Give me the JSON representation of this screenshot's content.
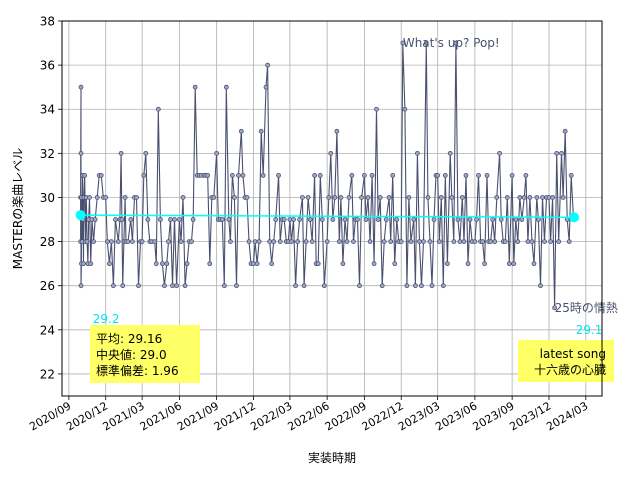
{
  "chart_data": {
    "type": "line",
    "xlabel": "実装時期",
    "ylabel": "MASTERの楽曲レベル",
    "ylim": [
      21,
      38
    ],
    "xlim": [
      "2020-08-15",
      "2024-04-10"
    ],
    "grid": true,
    "yticks": [
      22,
      24,
      26,
      28,
      30,
      32,
      34,
      36,
      38
    ],
    "xticks": [
      {
        "date": "2020-09-01",
        "label": "2020/09"
      },
      {
        "date": "2020-12-01",
        "label": "2020/12"
      },
      {
        "date": "2021-03-01",
        "label": "2021/03"
      },
      {
        "date": "2021-06-01",
        "label": "2021/06"
      },
      {
        "date": "2021-09-01",
        "label": "2021/09"
      },
      {
        "date": "2021-12-01",
        "label": "2021/12"
      },
      {
        "date": "2022-03-01",
        "label": "2022/03"
      },
      {
        "date": "2022-06-01",
        "label": "2022/06"
      },
      {
        "date": "2022-09-01",
        "label": "2022/09"
      },
      {
        "date": "2022-12-01",
        "label": "2022/12"
      },
      {
        "date": "2023-03-01",
        "label": "2023/03"
      },
      {
        "date": "2023-06-01",
        "label": "2023/06"
      },
      {
        "date": "2023-09-01",
        "label": "2023/09"
      },
      {
        "date": "2023-12-01",
        "label": "2023/12"
      },
      {
        "date": "2024-03-01",
        "label": "2024/03"
      }
    ],
    "series": [
      {
        "color": "#4a5170",
        "points": [
          [
            "2020-09-30",
            28
          ],
          [
            "2020-09-30",
            30
          ],
          [
            "2020-10-01",
            35
          ],
          [
            "2020-10-01",
            32
          ],
          [
            "2020-10-01",
            26
          ],
          [
            "2020-10-02",
            27
          ],
          [
            "2020-10-02",
            30
          ],
          [
            "2020-10-03",
            29
          ],
          [
            "2020-10-04",
            28
          ],
          [
            "2020-10-05",
            31
          ],
          [
            "2020-10-06",
            29
          ],
          [
            "2020-10-07",
            27
          ],
          [
            "2020-10-08",
            30
          ],
          [
            "2020-10-10",
            31
          ],
          [
            "2020-10-12",
            28
          ],
          [
            "2020-10-14",
            30
          ],
          [
            "2020-10-16",
            28
          ],
          [
            "2020-10-18",
            27
          ],
          [
            "2020-10-20",
            29
          ],
          [
            "2020-10-22",
            30
          ],
          [
            "2020-10-25",
            27
          ],
          [
            "2020-10-28",
            29
          ],
          [
            "2020-11-01",
            28
          ],
          [
            "2020-11-05",
            29
          ],
          [
            "2020-11-10",
            30
          ],
          [
            "2020-11-15",
            31
          ],
          [
            "2020-11-20",
            31
          ],
          [
            "2020-11-25",
            30
          ],
          [
            "2020-12-01",
            30
          ],
          [
            "2020-12-05",
            28
          ],
          [
            "2020-12-10",
            27
          ],
          [
            "2020-12-15",
            28
          ],
          [
            "2020-12-20",
            26
          ],
          [
            "2020-12-25",
            29
          ],
          [
            "2021-01-01",
            28
          ],
          [
            "2021-01-05",
            29
          ],
          [
            "2021-01-08",
            32
          ],
          [
            "2021-01-10",
            29
          ],
          [
            "2021-01-12",
            26
          ],
          [
            "2021-01-15",
            28
          ],
          [
            "2021-01-18",
            30
          ],
          [
            "2021-01-20",
            28
          ],
          [
            "2021-01-25",
            28
          ],
          [
            "2021-02-01",
            29
          ],
          [
            "2021-02-05",
            28
          ],
          [
            "2021-02-10",
            30
          ],
          [
            "2021-02-15",
            30
          ],
          [
            "2021-02-20",
            26
          ],
          [
            "2021-02-25",
            28
          ],
          [
            "2021-03-01",
            28
          ],
          [
            "2021-03-05",
            31
          ],
          [
            "2021-03-10",
            32
          ],
          [
            "2021-03-15",
            29
          ],
          [
            "2021-03-20",
            28
          ],
          [
            "2021-03-25",
            28
          ],
          [
            "2021-04-01",
            28
          ],
          [
            "2021-04-05",
            27
          ],
          [
            "2021-04-10",
            34
          ],
          [
            "2021-04-15",
            29
          ],
          [
            "2021-04-20",
            27
          ],
          [
            "2021-04-25",
            26
          ],
          [
            "2021-05-01",
            27
          ],
          [
            "2021-05-05",
            28
          ],
          [
            "2021-05-10",
            29
          ],
          [
            "2021-05-15",
            26
          ],
          [
            "2021-05-20",
            29
          ],
          [
            "2021-05-25",
            26
          ],
          [
            "2021-06-01",
            29
          ],
          [
            "2021-06-05",
            28
          ],
          [
            "2021-06-10",
            30
          ],
          [
            "2021-06-15",
            26
          ],
          [
            "2021-06-20",
            27
          ],
          [
            "2021-06-25",
            28
          ],
          [
            "2021-07-01",
            28
          ],
          [
            "2021-07-05",
            29
          ],
          [
            "2021-07-10",
            35
          ],
          [
            "2021-07-15",
            31
          ],
          [
            "2021-07-20",
            31
          ],
          [
            "2021-07-25",
            31
          ],
          [
            "2021-08-01",
            31
          ],
          [
            "2021-08-05",
            31
          ],
          [
            "2021-08-10",
            31
          ],
          [
            "2021-08-15",
            27
          ],
          [
            "2021-08-20",
            30
          ],
          [
            "2021-08-25",
            30
          ],
          [
            "2021-09-01",
            32
          ],
          [
            "2021-09-05",
            29
          ],
          [
            "2021-09-10",
            29
          ],
          [
            "2021-09-15",
            29
          ],
          [
            "2021-09-20",
            26
          ],
          [
            "2021-09-25",
            35
          ],
          [
            "2021-10-01",
            29
          ],
          [
            "2021-10-05",
            28
          ],
          [
            "2021-10-10",
            31
          ],
          [
            "2021-10-15",
            30
          ],
          [
            "2021-10-20",
            26
          ],
          [
            "2021-10-25",
            31
          ],
          [
            "2021-11-01",
            33
          ],
          [
            "2021-11-05",
            31
          ],
          [
            "2021-11-10",
            30
          ],
          [
            "2021-11-15",
            30
          ],
          [
            "2021-11-20",
            28
          ],
          [
            "2021-11-25",
            27
          ],
          [
            "2021-12-01",
            27
          ],
          [
            "2021-12-05",
            28
          ],
          [
            "2021-12-10",
            27
          ],
          [
            "2021-12-15",
            28
          ],
          [
            "2021-12-20",
            33
          ],
          [
            "2021-12-25",
            31
          ],
          [
            "2022-01-01",
            35
          ],
          [
            "2022-01-05",
            36
          ],
          [
            "2022-01-10",
            28
          ],
          [
            "2022-01-15",
            27
          ],
          [
            "2022-01-20",
            28
          ],
          [
            "2022-01-25",
            29
          ],
          [
            "2022-02-01",
            31
          ],
          [
            "2022-02-05",
            28
          ],
          [
            "2022-02-10",
            29
          ],
          [
            "2022-02-15",
            29
          ],
          [
            "2022-02-20",
            28
          ],
          [
            "2022-02-25",
            28
          ],
          [
            "2022-03-01",
            29
          ],
          [
            "2022-03-05",
            28
          ],
          [
            "2022-03-10",
            29
          ],
          [
            "2022-03-15",
            26
          ],
          [
            "2022-03-20",
            28
          ],
          [
            "2022-03-25",
            29
          ],
          [
            "2022-04-01",
            30
          ],
          [
            "2022-04-05",
            26
          ],
          [
            "2022-04-10",
            28
          ],
          [
            "2022-04-15",
            30
          ],
          [
            "2022-04-20",
            29
          ],
          [
            "2022-04-25",
            28
          ],
          [
            "2022-05-01",
            31
          ],
          [
            "2022-05-05",
            27
          ],
          [
            "2022-05-10",
            27
          ],
          [
            "2022-05-15",
            31
          ],
          [
            "2022-05-20",
            29
          ],
          [
            "2022-05-25",
            26
          ],
          [
            "2022-06-01",
            28
          ],
          [
            "2022-06-05",
            30
          ],
          [
            "2022-06-10",
            32
          ],
          [
            "2022-06-15",
            29
          ],
          [
            "2022-06-20",
            30
          ],
          [
            "2022-06-25",
            33
          ],
          [
            "2022-07-01",
            28
          ],
          [
            "2022-07-05",
            30
          ],
          [
            "2022-07-10",
            27
          ],
          [
            "2022-07-15",
            29
          ],
          [
            "2022-07-20",
            28
          ],
          [
            "2022-07-25",
            30
          ],
          [
            "2022-08-01",
            31
          ],
          [
            "2022-08-05",
            28
          ],
          [
            "2022-08-10",
            29
          ],
          [
            "2022-08-15",
            29
          ],
          [
            "2022-08-20",
            26
          ],
          [
            "2022-08-25",
            30
          ],
          [
            "2022-09-01",
            31
          ],
          [
            "2022-09-05",
            29
          ],
          [
            "2022-09-10",
            30
          ],
          [
            "2022-09-15",
            28
          ],
          [
            "2022-09-20",
            31
          ],
          [
            "2022-09-25",
            27
          ],
          [
            "2022-10-01",
            34
          ],
          [
            "2022-10-05",
            29
          ],
          [
            "2022-10-10",
            30
          ],
          [
            "2022-10-15",
            26
          ],
          [
            "2022-10-20",
            28
          ],
          [
            "2022-10-25",
            29
          ],
          [
            "2022-11-01",
            30
          ],
          [
            "2022-11-05",
            28
          ],
          [
            "2022-11-10",
            31
          ],
          [
            "2022-11-15",
            27
          ],
          [
            "2022-11-20",
            29
          ],
          [
            "2022-11-25",
            28
          ],
          [
            "2022-12-01",
            28
          ],
          [
            "2022-12-05",
            37
          ],
          [
            "2022-12-10",
            34
          ],
          [
            "2022-12-15",
            26
          ],
          [
            "2022-12-20",
            30
          ],
          [
            "2022-12-25",
            28
          ],
          [
            "2023-01-01",
            29
          ],
          [
            "2023-01-05",
            26
          ],
          [
            "2023-01-10",
            32
          ],
          [
            "2023-01-15",
            28
          ],
          [
            "2023-01-20",
            26
          ],
          [
            "2023-01-25",
            28
          ],
          [
            "2023-02-01",
            37
          ],
          [
            "2023-02-05",
            30
          ],
          [
            "2023-02-10",
            28
          ],
          [
            "2023-02-15",
            26
          ],
          [
            "2023-02-20",
            29
          ],
          [
            "2023-02-25",
            31
          ],
          [
            "2023-03-01",
            31
          ],
          [
            "2023-03-05",
            28
          ],
          [
            "2023-03-10",
            30
          ],
          [
            "2023-03-15",
            26
          ],
          [
            "2023-03-20",
            31
          ],
          [
            "2023-03-25",
            27
          ],
          [
            "2023-04-01",
            32
          ],
          [
            "2023-04-05",
            30
          ],
          [
            "2023-04-10",
            28
          ],
          [
            "2023-04-15",
            37
          ],
          [
            "2023-04-20",
            29
          ],
          [
            "2023-04-25",
            28
          ],
          [
            "2023-05-01",
            30
          ],
          [
            "2023-05-05",
            28
          ],
          [
            "2023-05-10",
            31
          ],
          [
            "2023-05-15",
            27
          ],
          [
            "2023-05-20",
            29
          ],
          [
            "2023-05-25",
            28
          ],
          [
            "2023-06-01",
            28
          ],
          [
            "2023-06-05",
            29
          ],
          [
            "2023-06-10",
            31
          ],
          [
            "2023-06-15",
            28
          ],
          [
            "2023-06-20",
            28
          ],
          [
            "2023-06-25",
            27
          ],
          [
            "2023-07-01",
            31
          ],
          [
            "2023-07-05",
            28
          ],
          [
            "2023-07-10",
            28
          ],
          [
            "2023-07-15",
            29
          ],
          [
            "2023-07-20",
            28
          ],
          [
            "2023-07-25",
            30
          ],
          [
            "2023-08-01",
            32
          ],
          [
            "2023-08-05",
            29
          ],
          [
            "2023-08-10",
            28
          ],
          [
            "2023-08-15",
            28
          ],
          [
            "2023-08-20",
            30
          ],
          [
            "2023-08-25",
            27
          ],
          [
            "2023-09-01",
            31
          ],
          [
            "2023-09-05",
            27
          ],
          [
            "2023-09-10",
            29
          ],
          [
            "2023-09-15",
            28
          ],
          [
            "2023-09-20",
            30
          ],
          [
            "2023-09-25",
            29
          ],
          [
            "2023-10-01",
            30
          ],
          [
            "2023-10-05",
            31
          ],
          [
            "2023-10-10",
            28
          ],
          [
            "2023-10-15",
            30
          ],
          [
            "2023-10-20",
            28
          ],
          [
            "2023-10-25",
            27
          ],
          [
            "2023-11-01",
            30
          ],
          [
            "2023-11-05",
            29
          ],
          [
            "2023-11-10",
            26
          ],
          [
            "2023-11-15",
            30
          ],
          [
            "2023-11-20",
            28
          ],
          [
            "2023-11-25",
            30
          ],
          [
            "2023-12-01",
            30
          ],
          [
            "2023-12-05",
            28
          ],
          [
            "2023-12-10",
            30
          ],
          [
            "2023-12-15",
            25
          ],
          [
            "2023-12-20",
            32
          ],
          [
            "2023-12-25",
            28
          ],
          [
            "2024-01-01",
            32
          ],
          [
            "2024-01-05",
            30
          ],
          [
            "2024-01-10",
            33
          ],
          [
            "2024-01-15",
            29
          ],
          [
            "2024-01-20",
            28
          ],
          [
            "2024-01-25",
            31
          ],
          [
            "2024-01-30",
            29.2
          ]
        ]
      },
      {
        "color": "#00ffff",
        "points": [
          [
            "2020-09-30",
            29.2
          ],
          [
            "2024-02-01",
            29.1
          ]
        ]
      }
    ],
    "annotations": [
      {
        "text": "What's up? Pop!",
        "x": "2022-12-05",
        "y": 37,
        "color": "#4a5170"
      },
      {
        "text": "25時の情熱",
        "x": "2023-12-15",
        "y": 25,
        "color": "#4a5170"
      },
      {
        "text": "29.2",
        "x": "2020-10-30",
        "y": 24.5,
        "color": "#00e5ee"
      },
      {
        "text": "29.1",
        "x": "2024-02-05",
        "y": 24,
        "color": "#00e5ee"
      }
    ],
    "summary_box": {
      "lines": [
        "平均: 29.16",
        "中央値: 29.0",
        "標準偏差:  1.96"
      ],
      "background": "#ffff66"
    },
    "latest_box": {
      "lines": [
        "latest song",
        "十六歳の心臓"
      ],
      "background": "#ffff66"
    }
  }
}
